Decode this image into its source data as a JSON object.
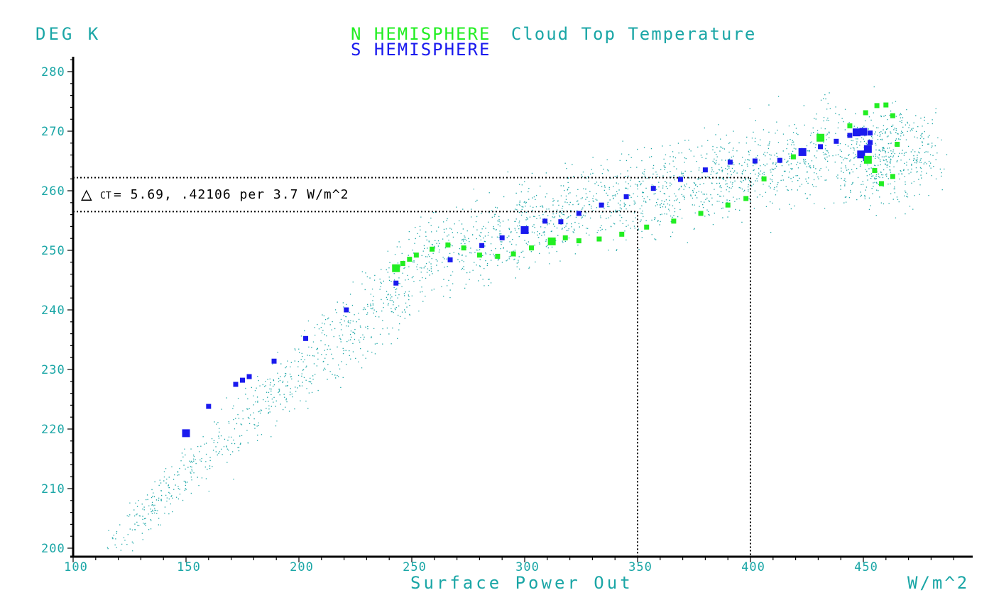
{
  "chart_data": {
    "type": "scatter",
    "title_parts": [
      {
        "text": "N HEMISPHERE",
        "color": "#22ee22"
      },
      {
        "text": "Cloud Top Temperature",
        "color": "#1aa6a6"
      }
    ],
    "subtitle": "S HEMISPHERE",
    "ylabel": "DEG K",
    "xlabel": "Surface Power Out",
    "xunit": "W/m^2",
    "xlim": [
      100,
      495
    ],
    "ylim": [
      198,
      282
    ],
    "x_ticks": [
      100,
      150,
      200,
      250,
      300,
      350,
      400,
      450
    ],
    "y_ticks": [
      200,
      210,
      220,
      230,
      240,
      250,
      260,
      270,
      280
    ],
    "annotation": {
      "symbol": "△",
      "sub": "CT",
      "text": "= 5.69, .42106 per 3.7 W/m^2",
      "x_refs": [
        350,
        400
      ],
      "y_refs": [
        256.5,
        262.2
      ]
    },
    "colors": {
      "cloud": "#1aa6a6",
      "north": "#22ee22",
      "south": "#1a1aee",
      "axis": "#000000"
    },
    "series": [
      {
        "name": "S HEMISPHERE",
        "color": "#1a1aee",
        "points": [
          [
            150,
            219.3,
            2
          ],
          [
            160,
            223.8,
            1
          ],
          [
            172,
            227.5,
            1
          ],
          [
            175,
            228.2,
            1
          ],
          [
            178,
            228.8,
            1
          ],
          [
            189,
            231.4,
            1
          ],
          [
            203,
            235.2,
            1
          ],
          [
            221,
            240.0,
            1
          ],
          [
            243,
            244.5,
            1
          ],
          [
            267,
            248.4,
            1
          ],
          [
            281,
            250.8,
            1
          ],
          [
            290,
            252.1,
            1
          ],
          [
            300,
            253.4,
            2
          ],
          [
            309,
            254.9,
            1
          ],
          [
            316,
            254.8,
            1
          ],
          [
            324,
            256.2,
            1
          ],
          [
            334,
            257.6,
            1
          ],
          [
            345,
            259.0,
            1
          ],
          [
            357,
            260.4,
            1
          ],
          [
            369,
            261.9,
            1
          ],
          [
            380,
            263.5,
            1
          ],
          [
            391,
            264.8,
            1
          ],
          [
            402,
            265.0,
            1
          ],
          [
            413,
            265.1,
            1
          ],
          [
            423,
            266.5,
            2
          ],
          [
            431,
            267.4,
            1
          ],
          [
            438,
            268.3,
            1
          ],
          [
            444,
            269.3,
            1
          ],
          [
            447,
            269.8,
            2
          ],
          [
            450,
            269.9,
            2
          ],
          [
            453,
            269.7,
            1
          ],
          [
            453,
            268.1,
            1
          ],
          [
            452,
            267.0,
            2
          ],
          [
            449,
            266.1,
            2
          ],
          [
            451,
            265.4,
            1
          ]
        ]
      },
      {
        "name": "N HEMISPHERE",
        "color": "#22ee22",
        "points": [
          [
            243,
            247.0,
            2
          ],
          [
            246,
            247.8,
            1
          ],
          [
            249,
            248.5,
            1
          ],
          [
            252,
            249.2,
            1
          ],
          [
            259,
            250.2,
            1
          ],
          [
            266,
            250.9,
            1
          ],
          [
            273,
            250.4,
            1
          ],
          [
            280,
            249.2,
            1
          ],
          [
            288,
            249.0,
            1
          ],
          [
            295,
            249.4,
            1
          ],
          [
            303,
            250.4,
            1
          ],
          [
            312,
            251.5,
            2
          ],
          [
            318,
            252.1,
            1
          ],
          [
            324,
            251.6,
            1
          ],
          [
            333,
            251.9,
            1
          ],
          [
            343,
            252.7,
            1
          ],
          [
            354,
            253.9,
            1
          ],
          [
            366,
            254.9,
            1
          ],
          [
            378,
            256.2,
            1
          ],
          [
            390,
            257.6,
            1
          ],
          [
            398,
            258.7,
            1
          ],
          [
            406,
            262.0,
            1
          ],
          [
            419,
            265.7,
            1
          ],
          [
            431,
            268.9,
            2
          ],
          [
            444,
            270.9,
            1
          ],
          [
            451,
            273.1,
            1
          ],
          [
            456,
            274.3,
            1
          ],
          [
            460,
            274.4,
            1
          ],
          [
            463,
            272.6,
            1
          ],
          [
            465,
            267.8,
            1
          ],
          [
            452,
            265.2,
            2
          ],
          [
            455,
            263.4,
            1
          ],
          [
            458,
            261.2,
            1
          ],
          [
            463,
            262.4,
            1
          ]
        ]
      }
    ]
  }
}
